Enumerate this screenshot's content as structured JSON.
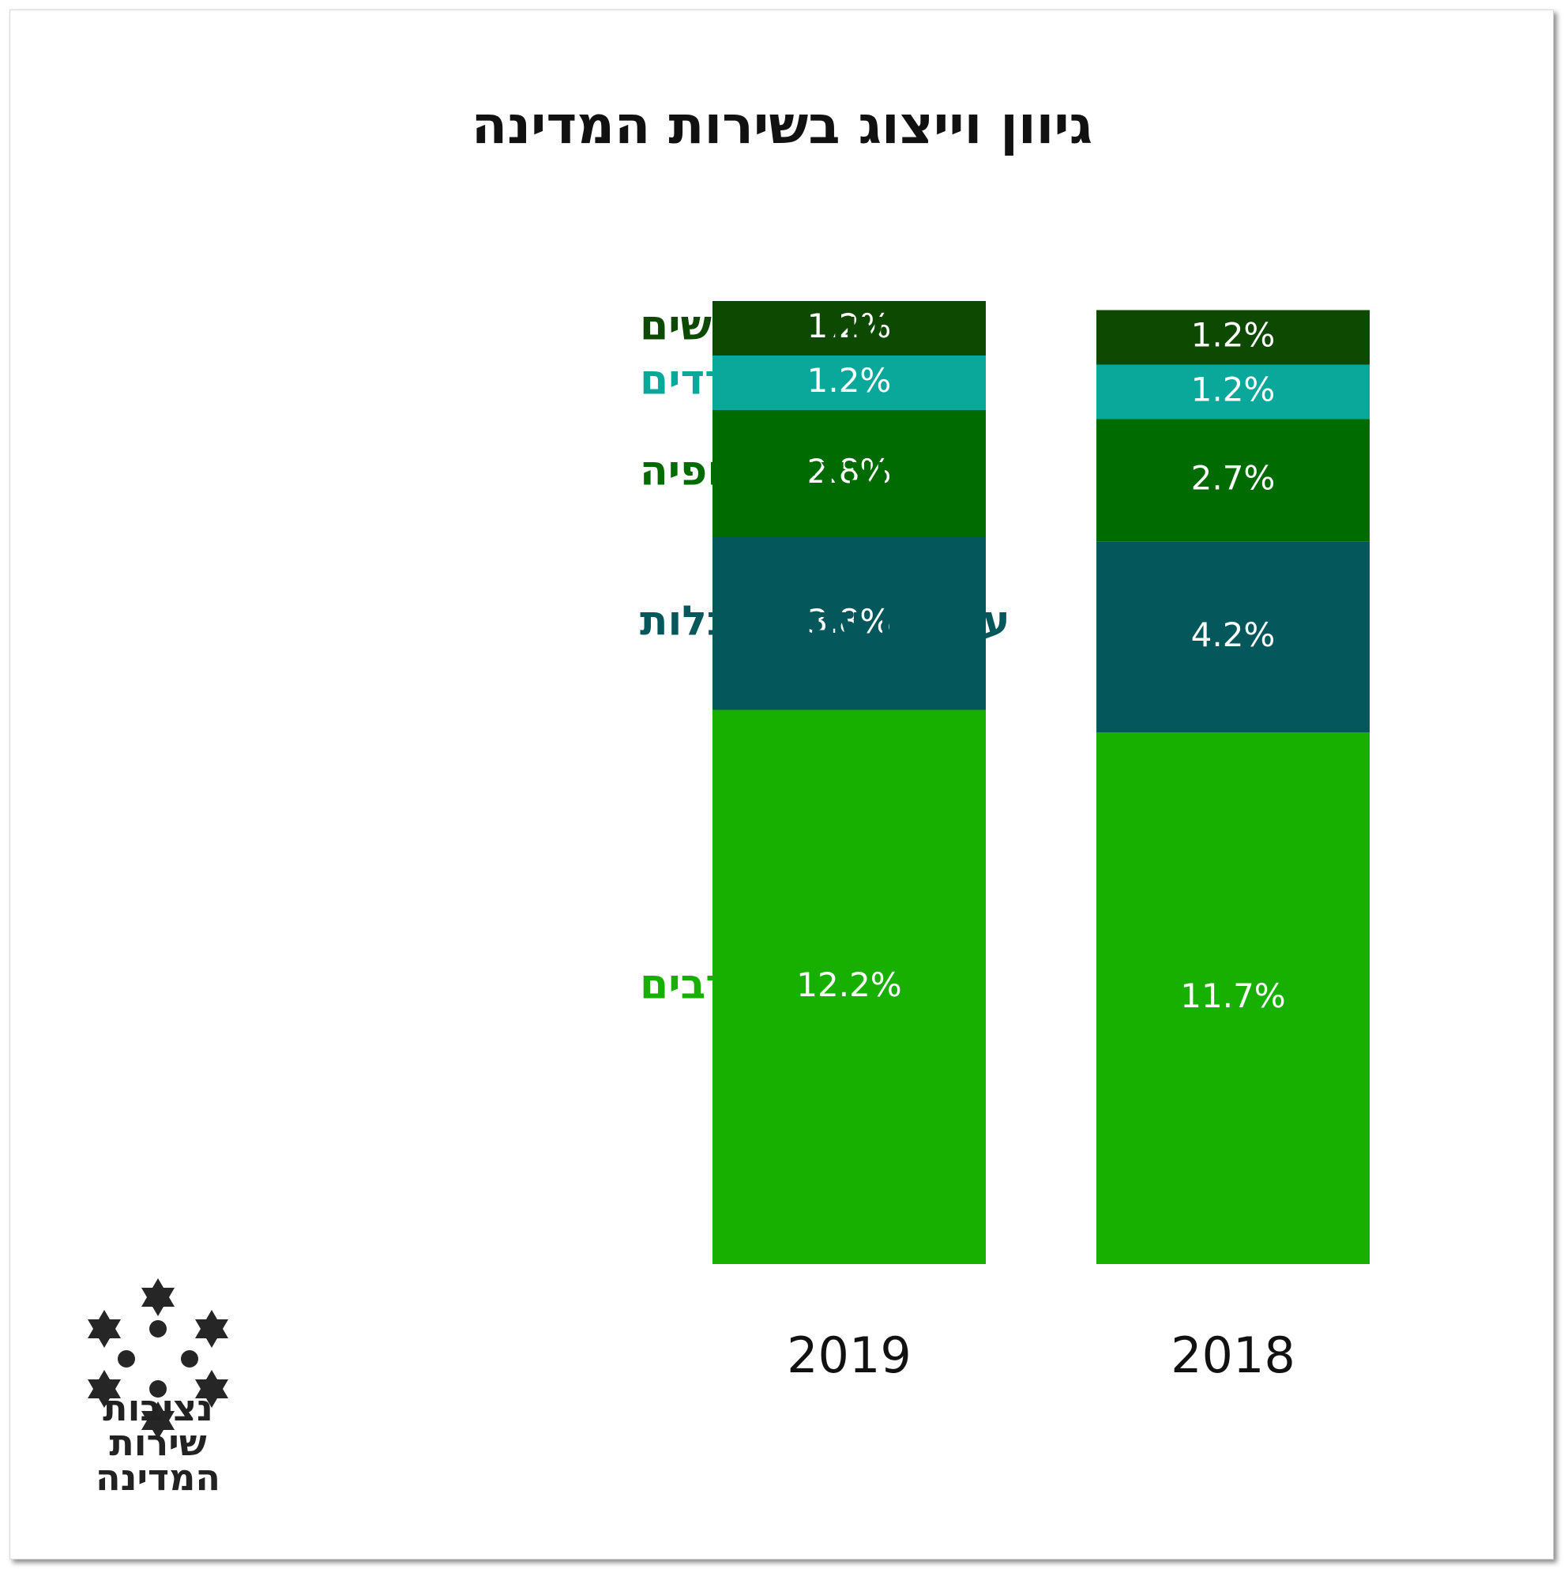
{
  "title": "גיוון וייצוג בשירות המדינה",
  "colors": {
    "olim": "#0d4a00",
    "haredim": "#0aa79b",
    "ethiopia": "#006b00",
    "disabilities": "#04575a",
    "arabs": "#17b000"
  },
  "chart_data": {
    "type": "bar",
    "stacked": true,
    "categories": [
      "2019",
      "2018"
    ],
    "series": [
      {
        "name": "ערבים",
        "color_key": "arabs",
        "values": [
          12.2,
          11.7
        ],
        "labels": [
          "12.2%",
          "11.7%"
        ]
      },
      {
        "name": "עובדים עם מוגבלות",
        "color_key": "disabilities",
        "values": [
          3.8,
          4.2
        ],
        "labels": [
          "3.8%",
          "4.2%"
        ]
      },
      {
        "name": "יוצאי אתיופיה",
        "color_key": "ethiopia",
        "values": [
          2.8,
          2.7
        ],
        "labels": [
          "2.8%",
          "2.7%"
        ]
      },
      {
        "name": "חרדים",
        "color_key": "haredim",
        "values": [
          1.2,
          1.2
        ],
        "labels": [
          "1.2%",
          "1.2%"
        ]
      },
      {
        "name": "עולים חדשים",
        "color_key": "olim",
        "values": [
          1.2,
          1.2
        ],
        "labels": [
          "1.2%",
          "1.2%"
        ]
      }
    ],
    "legend": "left"
  },
  "logo": {
    "icon": "stars-of-david-circle-icon",
    "lines": [
      "נציבות",
      "שירות",
      "המדינה"
    ]
  }
}
